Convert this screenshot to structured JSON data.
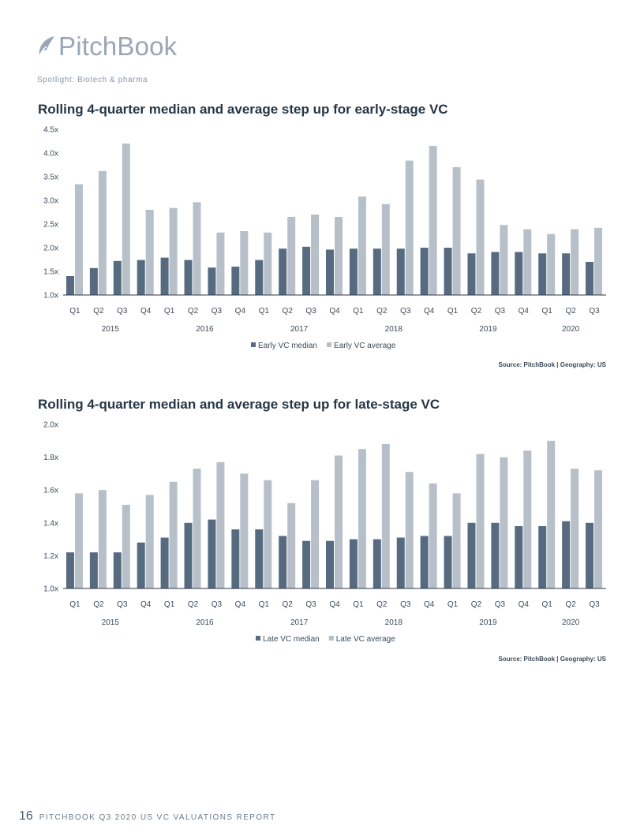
{
  "header": {
    "logo_text": "PitchBook",
    "spotlight": "Spotlight: Biotech & pharma"
  },
  "colors": {
    "median": "#566b80",
    "average": "#b7bfc8",
    "axis": "#2d3a48"
  },
  "footer": {
    "page_number": "16",
    "text": "PITCHBOOK Q3 2020 US VC VALUATIONS REPORT"
  },
  "chart_data": [
    {
      "type": "bar",
      "title": "Rolling 4-quarter median and average step up for early-stage VC",
      "categories": [
        "Q1",
        "Q2",
        "Q3",
        "Q4",
        "Q1",
        "Q2",
        "Q3",
        "Q4",
        "Q1",
        "Q2",
        "Q3",
        "Q4",
        "Q1",
        "Q2",
        "Q3",
        "Q4",
        "Q1",
        "Q2",
        "Q3",
        "Q4",
        "Q1",
        "Q2",
        "Q3"
      ],
      "years": [
        {
          "label": "2015",
          "start": 0,
          "end": 3
        },
        {
          "label": "2016",
          "start": 4,
          "end": 7
        },
        {
          "label": "2017",
          "start": 8,
          "end": 11
        },
        {
          "label": "2018",
          "start": 12,
          "end": 15
        },
        {
          "label": "2019",
          "start": 16,
          "end": 19
        },
        {
          "label": "2020",
          "start": 20,
          "end": 22
        }
      ],
      "ylim": [
        1.0,
        4.5
      ],
      "yticks": [
        1.0,
        1.5,
        2.0,
        2.5,
        3.0,
        3.5,
        4.0,
        4.5
      ],
      "ytick_labels": [
        "1.0x",
        "1.5x",
        "2.0x",
        "2.5x",
        "3.0x",
        "3.5x",
        "4.0x",
        "4.5x"
      ],
      "series": [
        {
          "name": "Early VC median",
          "values": [
            1.4,
            1.57,
            1.72,
            1.74,
            1.79,
            1.74,
            1.58,
            1.6,
            1.74,
            1.98,
            2.02,
            1.96,
            1.98,
            1.98,
            1.98,
            2.0,
            2.0,
            1.88,
            1.91,
            1.91,
            1.88,
            1.88,
            1.7
          ]
        },
        {
          "name": "Early VC  average",
          "values": [
            3.34,
            3.62,
            4.2,
            2.8,
            2.84,
            2.96,
            2.32,
            2.35,
            2.32,
            2.65,
            2.7,
            2.65,
            3.08,
            2.92,
            3.84,
            4.15,
            3.7,
            3.44,
            2.48,
            2.39,
            2.29,
            2.39,
            2.42
          ]
        }
      ],
      "source": "Source: PitchBook | Geography: US"
    },
    {
      "type": "bar",
      "title": "Rolling 4-quarter median and average step up for late-stage VC",
      "categories": [
        "Q1",
        "Q2",
        "Q3",
        "Q4",
        "Q1",
        "Q2",
        "Q3",
        "Q4",
        "Q1",
        "Q2",
        "Q3",
        "Q4",
        "Q1",
        "Q2",
        "Q3",
        "Q4",
        "Q1",
        "Q2",
        "Q3",
        "Q4",
        "Q1",
        "Q2",
        "Q3"
      ],
      "years": [
        {
          "label": "2015",
          "start": 0,
          "end": 3
        },
        {
          "label": "2016",
          "start": 4,
          "end": 7
        },
        {
          "label": "2017",
          "start": 8,
          "end": 11
        },
        {
          "label": "2018",
          "start": 12,
          "end": 15
        },
        {
          "label": "2019",
          "start": 16,
          "end": 19
        },
        {
          "label": "2020",
          "start": 20,
          "end": 22
        }
      ],
      "ylim": [
        1.0,
        2.0
      ],
      "yticks": [
        1.0,
        1.2,
        1.4,
        1.6,
        1.8,
        2.0
      ],
      "ytick_labels": [
        "1.0x",
        "1.2x",
        "1.4x",
        "1.6x",
        "1.8x",
        "2.0x"
      ],
      "series": [
        {
          "name": "Late VC median",
          "values": [
            1.22,
            1.22,
            1.22,
            1.28,
            1.31,
            1.4,
            1.42,
            1.36,
            1.36,
            1.32,
            1.29,
            1.29,
            1.3,
            1.3,
            1.31,
            1.32,
            1.32,
            1.4,
            1.4,
            1.38,
            1.38,
            1.41,
            1.4
          ]
        },
        {
          "name": "Late VC average",
          "values": [
            1.58,
            1.6,
            1.51,
            1.57,
            1.65,
            1.73,
            1.77,
            1.7,
            1.66,
            1.52,
            1.66,
            1.81,
            1.85,
            1.88,
            1.71,
            1.64,
            1.58,
            1.82,
            1.8,
            1.84,
            1.9,
            1.73,
            1.72
          ]
        }
      ],
      "source": "Source: PitchBook | Geography: US"
    }
  ]
}
